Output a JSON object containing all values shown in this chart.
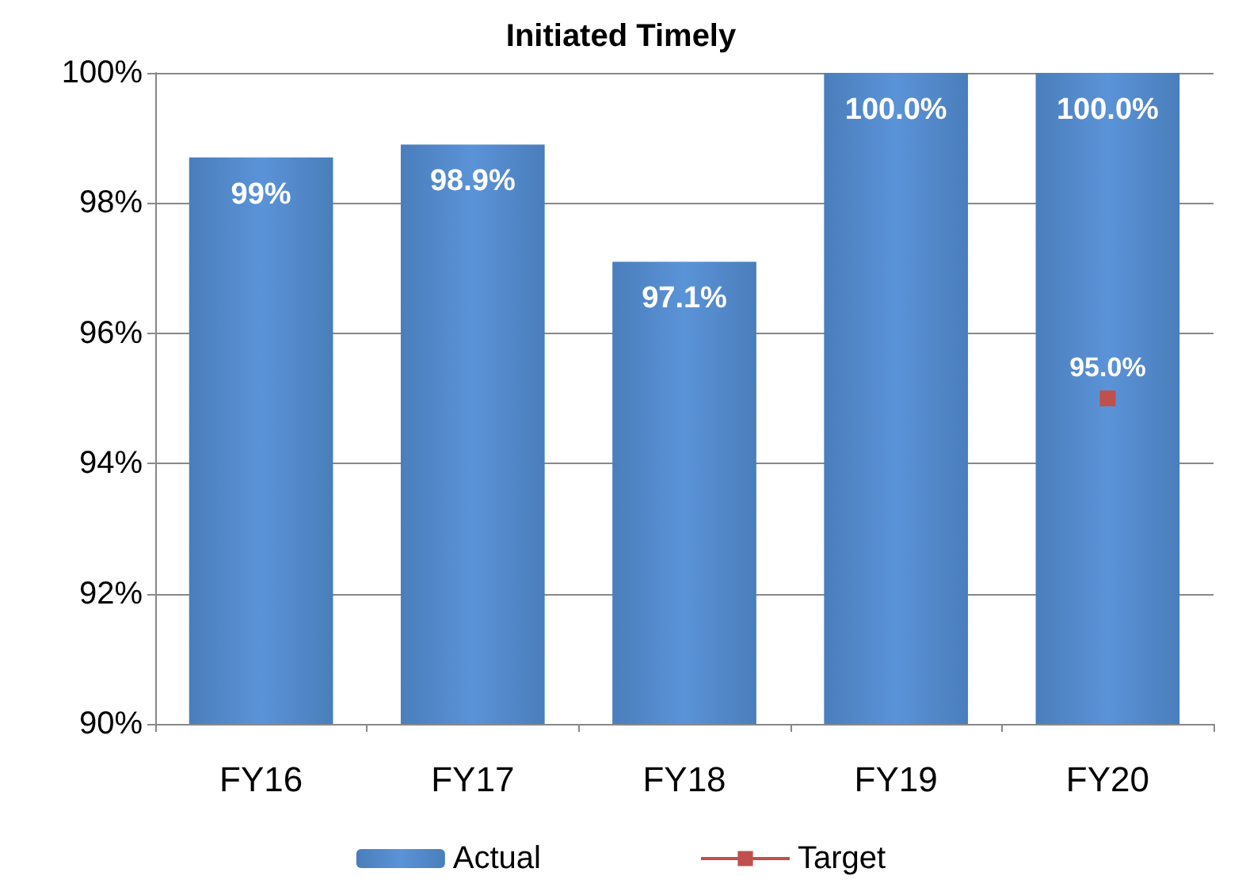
{
  "chart_data": {
    "type": "bar",
    "title": "Initiated Timely",
    "categories": [
      "FY16",
      "FY17",
      "FY18",
      "FY19",
      "FY20"
    ],
    "series": [
      {
        "name": "Actual",
        "color": "#4a7ebb",
        "values": [
          98.7,
          98.9,
          97.1,
          100,
          100
        ],
        "value_labels": [
          "99%",
          "98.9%",
          "97.1%",
          "100.0%",
          "100.0%"
        ]
      },
      {
        "name": "Target",
        "type": "line",
        "color": "#c0504d",
        "values": [
          null,
          null,
          null,
          null,
          95
        ],
        "value_labels": [
          null,
          null,
          null,
          null,
          "95.0%"
        ]
      }
    ],
    "ylim": [
      90,
      100
    ],
    "yticks": [
      {
        "value": 90,
        "label": "90%"
      },
      {
        "value": 92,
        "label": "92%"
      },
      {
        "value": 94,
        "label": "94%"
      },
      {
        "value": 96,
        "label": "96%"
      },
      {
        "value": 98,
        "label": "98%"
      },
      {
        "value": 100,
        "label": "100%"
      }
    ],
    "grid": "y",
    "legend": "bottom",
    "marker": "square"
  }
}
